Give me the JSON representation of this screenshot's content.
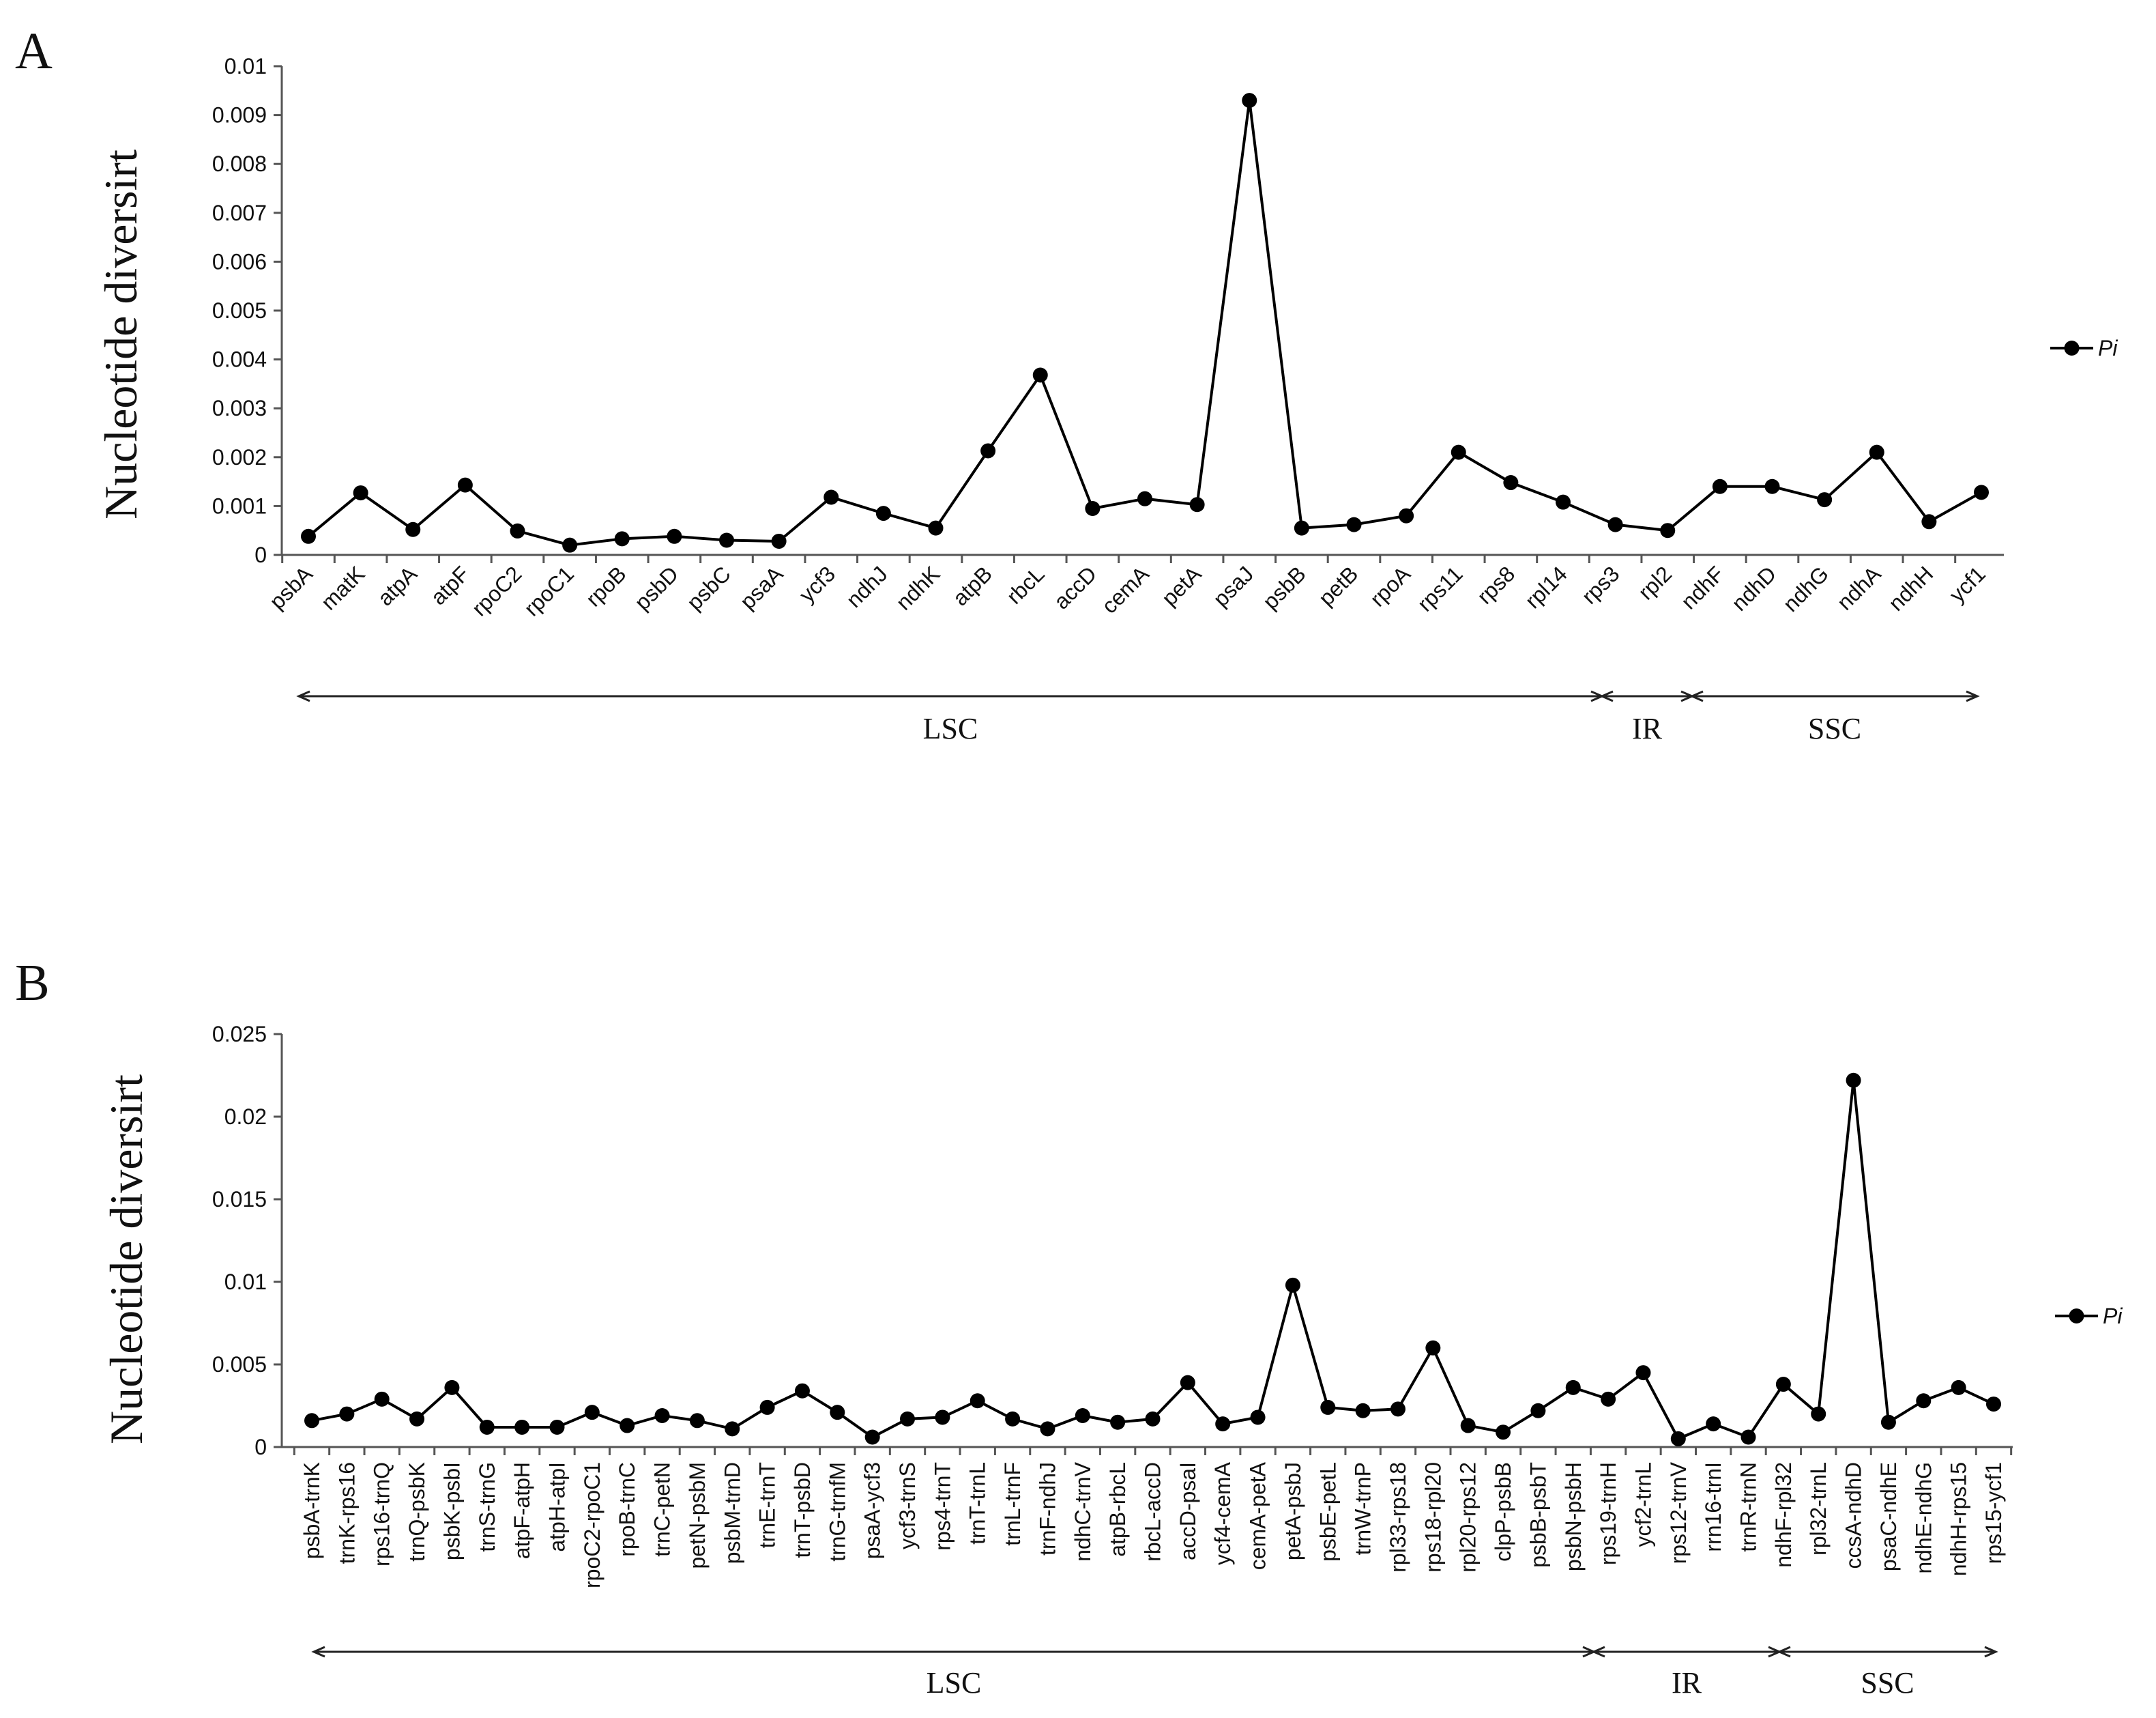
{
  "chart_data": [
    {
      "panel": "A",
      "type": "line",
      "ylabel": "Nucleotide diversirt",
      "ylim": [
        0,
        0.01
      ],
      "yticks": [
        0,
        0.001,
        0.002,
        0.003,
        0.004,
        0.005,
        0.006,
        0.007,
        0.008,
        0.009,
        0.01
      ],
      "ytick_labels": [
        "0",
        "0.001",
        "0.002",
        "0.003",
        "0.004",
        "0.005",
        "0.006",
        "0.007",
        "0.008",
        "0.009",
        "0.01"
      ],
      "categories": [
        "psbA",
        "matK",
        "atpA",
        "atpF",
        "rpoC2",
        "rpoC1",
        "rpoB",
        "psbD",
        "psbC",
        "psaA",
        "ycf3",
        "ndhJ",
        "ndhK",
        "atpB",
        "rbcL",
        "accD",
        "cemA",
        "petA",
        "psaJ",
        "psbB",
        "petB",
        "rpoA",
        "rps11",
        "rps8",
        "rpl14",
        "rps3",
        "rpl2",
        "ndhF",
        "ndhD",
        "ndhG",
        "ndhA",
        "ndhH",
        "ycf1"
      ],
      "series": [
        {
          "name": "Pi",
          "values": [
            0.00038,
            0.00127,
            0.00052,
            0.00143,
            0.00049,
            0.0002,
            0.00033,
            0.00038,
            0.0003,
            0.00028,
            0.00118,
            0.00085,
            0.00055,
            0.00213,
            0.00368,
            0.00095,
            0.00115,
            0.00103,
            0.0093,
            0.00055,
            0.00062,
            0.0008,
            0.0021,
            0.00148,
            0.00108,
            0.00062,
            0.0005,
            0.0014,
            0.0014,
            0.00113,
            0.0021,
            0.00068,
            0.00128
          ]
        }
      ],
      "regions": [
        {
          "label": "LSC",
          "start": "psbA",
          "end": "rps3"
        },
        {
          "label": "IR",
          "start": "rps3",
          "end": "rpl2"
        },
        {
          "label": "SSC",
          "start": "rpl2",
          "end": "ycf1"
        }
      ],
      "legend": {
        "label": "Pi",
        "position": "right"
      }
    },
    {
      "panel": "B",
      "type": "line",
      "ylabel": "Nucleotide diversirt",
      "ylim": [
        0,
        0.025
      ],
      "yticks": [
        0,
        0.005,
        0.01,
        0.015,
        0.02,
        0.025
      ],
      "ytick_labels": [
        "0",
        "0.005",
        "0.01",
        "0.015",
        "0.02",
        "0.025"
      ],
      "categories": [
        "psbA-trnK",
        "trnK-rps16",
        "rps16-trnQ",
        "trnQ-psbK",
        "psbK-psbI",
        "trnS-trnG",
        "atpF-atpH",
        "atpH-atpI",
        "rpoC2-rpoC1",
        "rpoB-trnC",
        "trnC-petN",
        "petN-psbM",
        "psbM-trnD",
        "trnE-trnT",
        "trnT-psbD",
        "trnG-trnfM",
        "psaA-ycf3",
        "ycf3-trnS",
        "rps4-trnT",
        "trnT-trnL",
        "trnL-trnF",
        "trnF-ndhJ",
        "ndhC-trnV",
        "atpB-rbcL",
        "rbcL-accD",
        "accD-psaI",
        "ycf4-cemA",
        "cemA-petA",
        "petA-psbJ",
        "psbE-petL",
        "trnW-trnP",
        "rpl33-rps18",
        "rps18-rpl20",
        "rpl20-rps12",
        "clpP-psbB",
        "psbB-psbT",
        "psbN-psbH",
        "rps19-trnH",
        "ycf2-trnL",
        "rps12-trnV",
        "rrn16-trnI",
        "trnR-trnN",
        "ndhF-rpl32",
        "rpl32-trnL",
        "ccsA-ndhD",
        "psaC-ndhE",
        "ndhE-ndhG",
        "ndhH-rps15",
        "rps15-ycf1"
      ],
      "series": [
        {
          "name": "Pi",
          "values": [
            0.0016,
            0.002,
            0.0029,
            0.0017,
            0.0036,
            0.0012,
            0.0012,
            0.0012,
            0.0021,
            0.0013,
            0.0019,
            0.0016,
            0.0011,
            0.0024,
            0.0034,
            0.0021,
            0.0006,
            0.0017,
            0.0018,
            0.0028,
            0.0017,
            0.0011,
            0.0019,
            0.0015,
            0.0017,
            0.0039,
            0.0014,
            0.0018,
            0.0098,
            0.0024,
            0.0022,
            0.0023,
            0.006,
            0.0013,
            0.0009,
            0.0022,
            0.0036,
            0.0029,
            0.0045,
            0.0005,
            0.0014,
            0.0006,
            0.0038,
            0.002,
            0.0222,
            0.0015,
            0.0028,
            0.0036,
            0.0026
          ]
        }
      ],
      "regions": [
        {
          "label": "LSC",
          "start": "psbA-trnK",
          "end": "psbN-psbH"
        },
        {
          "label": "IR",
          "start": "psbN-psbH",
          "end": "trnR-trnN"
        },
        {
          "label": "SSC",
          "start": "trnR-trnN",
          "end": "rps15-ycf1"
        }
      ],
      "legend": {
        "label": "Pi",
        "position": "right"
      }
    }
  ]
}
